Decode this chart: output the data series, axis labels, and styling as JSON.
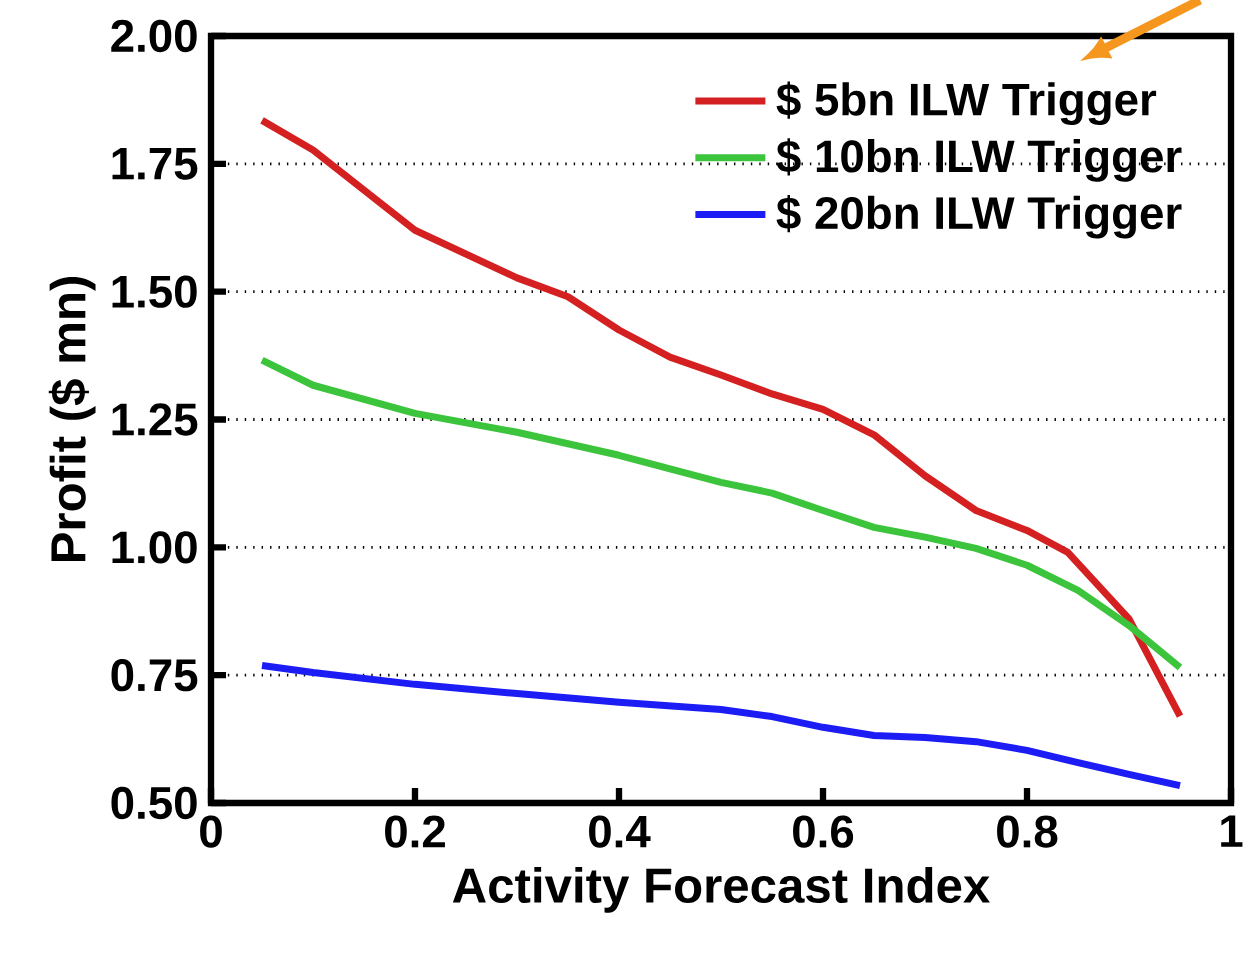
{
  "chart_data": {
    "type": "line",
    "xlabel": "Activity Forecast Index",
    "ylabel": "Profit ($ mn)",
    "xlim": [
      0,
      1
    ],
    "xticks": [
      0,
      0.2,
      0.4,
      0.6,
      0.8,
      1
    ],
    "ylim": [
      0.5,
      2.0
    ],
    "yticks": [
      {
        "value": 0.5,
        "label": "0.50"
      },
      {
        "value": 0.75,
        "label": "0.75"
      },
      {
        "value": 1.0,
        "label": "1.00"
      },
      {
        "value": 1.25,
        "label": "1.25"
      },
      {
        "value": 1.5,
        "label": "1.50"
      },
      {
        "value": 1.75,
        "label": "1.75"
      },
      {
        "value": 2.0,
        "label": "2.00"
      }
    ],
    "grid": "y",
    "legend": "top right",
    "marker": "none",
    "line_style": "solid",
    "series": [
      {
        "name": "$ 5bn ILW Trigger",
        "color": "#d42020",
        "x": [
          0.05,
          0.1,
          0.2,
          0.3,
          0.35,
          0.4,
          0.45,
          0.5,
          0.55,
          0.6,
          0.65,
          0.7,
          0.75,
          0.8,
          0.84,
          0.9,
          0.95
        ],
        "values": [
          1.835,
          1.777,
          1.62,
          1.527,
          1.49,
          1.425,
          1.372,
          1.337,
          1.3,
          1.27,
          1.22,
          1.14,
          1.072,
          1.033,
          0.99,
          0.86,
          0.67
        ]
      },
      {
        "name": "$ 10bn ILW Trigger",
        "color": "#3cc43c",
        "x": [
          0.05,
          0.1,
          0.2,
          0.3,
          0.4,
          0.5,
          0.55,
          0.6,
          0.65,
          0.7,
          0.75,
          0.8,
          0.85,
          0.9,
          0.95
        ],
        "values": [
          1.366,
          1.317,
          1.262,
          1.225,
          1.18,
          1.127,
          1.106,
          1.072,
          1.039,
          1.02,
          0.998,
          0.965,
          0.916,
          0.847,
          0.765
        ]
      },
      {
        "name": "$ 20bn ILW Trigger",
        "color": "#1c1cf5",
        "x": [
          0.05,
          0.1,
          0.2,
          0.3,
          0.4,
          0.5,
          0.55,
          0.6,
          0.65,
          0.7,
          0.75,
          0.8,
          0.85,
          0.9,
          0.95
        ],
        "values": [
          0.769,
          0.755,
          0.732,
          0.714,
          0.697,
          0.683,
          0.669,
          0.648,
          0.632,
          0.628,
          0.62,
          0.603,
          0.579,
          0.556,
          0.534
        ]
      }
    ]
  }
}
